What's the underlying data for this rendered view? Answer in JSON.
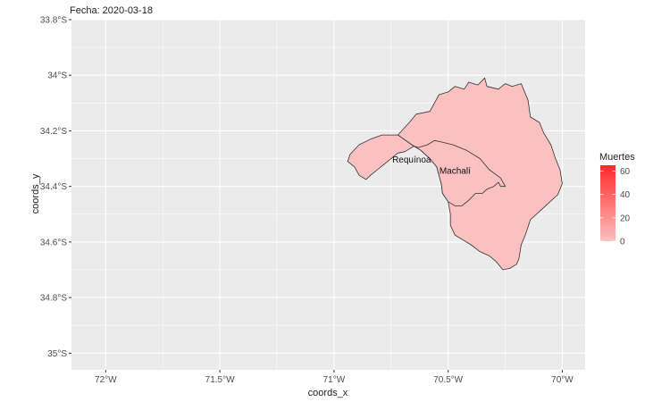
{
  "title": "Fecha: 2020-03-18",
  "axes": {
    "xlabel": "coords_x",
    "ylabel": "coords_y",
    "xlim": [
      -72.15,
      -69.9
    ],
    "ylim": [
      -35.06,
      -33.8
    ],
    "x_ticks": [
      {
        "value": -72.0,
        "label": "72°W"
      },
      {
        "value": -71.5,
        "label": "71.5°W"
      },
      {
        "value": -71.0,
        "label": "71°W"
      },
      {
        "value": -70.5,
        "label": "70.5°W"
      },
      {
        "value": -70.0,
        "label": "70°W"
      }
    ],
    "y_ticks": [
      {
        "value": -33.8,
        "label": "33.8°S"
      },
      {
        "value": -34.0,
        "label": "34°S"
      },
      {
        "value": -34.2,
        "label": "34.2°S"
      },
      {
        "value": -34.4,
        "label": "34.4°S"
      },
      {
        "value": -34.6,
        "label": "34.6°S"
      },
      {
        "value": -34.8,
        "label": "34.8°S"
      },
      {
        "value": -35.0,
        "label": "35°S"
      }
    ],
    "grid": true
  },
  "legend": {
    "title": "Muertes",
    "placement": "right",
    "min": 0,
    "max": 65,
    "ticks": [
      {
        "value": 0,
        "label": "0"
      },
      {
        "value": 20,
        "label": "20"
      },
      {
        "value": 40,
        "label": "40"
      },
      {
        "value": 60,
        "label": "60"
      }
    ],
    "color_low": "#fbc0c0",
    "color_high": "#ff2a2a"
  },
  "colors": {
    "panel": "#ebebeb",
    "grid": "#ffffff",
    "region_stroke": "#333333"
  },
  "regions": [
    {
      "name": "Machalí",
      "value": 0,
      "label_lon": -70.47,
      "label_lat": -34.355,
      "boundary": [
        [
          -70.72,
          -34.215
        ],
        [
          -70.67,
          -34.17
        ],
        [
          -70.64,
          -34.14
        ],
        [
          -70.58,
          -34.13
        ],
        [
          -70.54,
          -34.07
        ],
        [
          -70.5,
          -34.06
        ],
        [
          -70.47,
          -34.04
        ],
        [
          -70.43,
          -34.05
        ],
        [
          -70.41,
          -34.025
        ],
        [
          -70.37,
          -34.035
        ],
        [
          -70.34,
          -34.01
        ],
        [
          -70.33,
          -34.04
        ],
        [
          -70.28,
          -34.05
        ],
        [
          -70.25,
          -34.03
        ],
        [
          -70.22,
          -34.04
        ],
        [
          -70.18,
          -34.03
        ],
        [
          -70.15,
          -34.09
        ],
        [
          -70.14,
          -34.15
        ],
        [
          -70.1,
          -34.17
        ],
        [
          -70.08,
          -34.21
        ],
        [
          -70.05,
          -34.25
        ],
        [
          -70.03,
          -34.3
        ],
        [
          -70.01,
          -34.34
        ],
        [
          -70.0,
          -34.39
        ],
        [
          -70.02,
          -34.43
        ],
        [
          -70.06,
          -34.46
        ],
        [
          -70.1,
          -34.49
        ],
        [
          -70.14,
          -34.52
        ],
        [
          -70.16,
          -34.57
        ],
        [
          -70.18,
          -34.61
        ],
        [
          -70.19,
          -34.66
        ],
        [
          -70.2,
          -34.68
        ],
        [
          -70.23,
          -34.695
        ],
        [
          -70.26,
          -34.7
        ],
        [
          -70.29,
          -34.67
        ],
        [
          -70.32,
          -34.65
        ],
        [
          -70.36,
          -34.635
        ],
        [
          -70.4,
          -34.61
        ],
        [
          -70.44,
          -34.59
        ],
        [
          -70.47,
          -34.575
        ],
        [
          -70.49,
          -34.54
        ],
        [
          -70.49,
          -34.5
        ],
        [
          -70.5,
          -34.455
        ],
        [
          -70.525,
          -34.425
        ],
        [
          -70.53,
          -34.39
        ],
        [
          -70.54,
          -34.36
        ],
        [
          -70.55,
          -34.33
        ],
        [
          -70.58,
          -34.3
        ],
        [
          -70.62,
          -34.27
        ],
        [
          -70.66,
          -34.25
        ]
      ]
    },
    {
      "name": "Requínoa",
      "value": 0,
      "label_lon": -70.66,
      "label_lat": -34.315,
      "boundary": [
        [
          -70.93,
          -34.285
        ],
        [
          -70.89,
          -34.25
        ],
        [
          -70.84,
          -34.23
        ],
        [
          -70.79,
          -34.215
        ],
        [
          -70.72,
          -34.215
        ],
        [
          -70.66,
          -34.25
        ],
        [
          -70.62,
          -34.27
        ],
        [
          -70.58,
          -34.3
        ],
        [
          -70.55,
          -34.33
        ],
        [
          -70.54,
          -34.36
        ],
        [
          -70.53,
          -34.39
        ],
        [
          -70.525,
          -34.425
        ],
        [
          -70.5,
          -34.455
        ],
        [
          -70.47,
          -34.47
        ],
        [
          -70.44,
          -34.47
        ],
        [
          -70.41,
          -34.45
        ],
        [
          -70.38,
          -34.425
        ],
        [
          -70.35,
          -34.425
        ],
        [
          -70.33,
          -34.41
        ],
        [
          -70.3,
          -34.4
        ],
        [
          -70.28,
          -34.385
        ],
        [
          -70.27,
          -34.4
        ],
        [
          -70.25,
          -34.4
        ],
        [
          -70.27,
          -34.37
        ],
        [
          -70.32,
          -34.34
        ],
        [
          -70.36,
          -34.3
        ],
        [
          -70.42,
          -34.27
        ],
        [
          -70.48,
          -34.25
        ],
        [
          -70.53,
          -34.24
        ],
        [
          -70.56,
          -34.235
        ],
        [
          -70.59,
          -34.25
        ],
        [
          -70.63,
          -34.26
        ],
        [
          -70.65,
          -34.255
        ],
        [
          -70.67,
          -34.265
        ],
        [
          -70.69,
          -34.275
        ],
        [
          -70.72,
          -34.28
        ],
        [
          -70.75,
          -34.3
        ],
        [
          -70.78,
          -34.32
        ],
        [
          -70.81,
          -34.34
        ],
        [
          -70.84,
          -34.36
        ],
        [
          -70.86,
          -34.375
        ],
        [
          -70.89,
          -34.36
        ],
        [
          -70.91,
          -34.33
        ],
        [
          -70.94,
          -34.31
        ]
      ]
    }
  ]
}
